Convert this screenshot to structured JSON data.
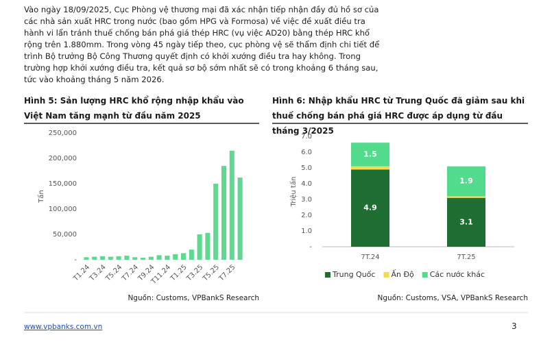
{
  "paragraph": {
    "lines": [
      "Vào ngày 18/09/2025, Cục Phòng vệ thương mại đã xác nhận tiếp nhận đầy đủ hồ sơ của",
      "các nhà sản xuất HRC trong nước (bao gồm HPG và Formosa) về việc đề xuất điều tra",
      "hành vi lẩn tránh thuế chống bán phá giá thép HRC (vụ việc AD20) bằng thép HRC khổ",
      "rộng trên 1.880mm. Trong vòng 45 ngày tiếp theo, cục phòng vệ sẽ thẩm định chi tiết để",
      "trình Bộ trưởng Bộ Công Thương quyết định có khởi xướng điều tra hay không. Trong",
      "trường hợp khởi xướng điều tra, kết quả sơ bộ sớm nhất sẽ có trong khoảng 6 tháng sau,",
      "tức vào khoảng tháng 5 năm 2026."
    ]
  },
  "chart_data": [
    {
      "type": "bar",
      "title": "Hình 5: Sản lượng HRC khổ rộng nhập khẩu vào Việt Nam tăng mạnh từ đầu năm 2025",
      "y_label": "Tấn",
      "source": "Nguồn: Customs, VPBankS Research",
      "categories": [
        "T1.24",
        null,
        "T3.24",
        null,
        "T5.24",
        null,
        "T7.24",
        null,
        "T9.24",
        null,
        "T11.24",
        null,
        "T1.25",
        null,
        "T3.25",
        null,
        "T5.25",
        null,
        "T7.25",
        null
      ],
      "values": [
        5000,
        6000,
        7000,
        6000,
        7000,
        8000,
        5000,
        4000,
        6000,
        9000,
        8000,
        11000,
        13000,
        20000,
        50000,
        53000,
        150000,
        185000,
        215000,
        162000
      ],
      "color": "#5ed98f",
      "ylim": [
        0,
        250000
      ],
      "yticks": [
        {
          "value": 0,
          "label": "-"
        },
        {
          "value": 50000,
          "label": "50,000"
        },
        {
          "value": 100000,
          "label": "100,000"
        },
        {
          "value": 150000,
          "label": "150,000"
        },
        {
          "value": 200000,
          "label": "200,000"
        },
        {
          "value": 250000,
          "label": "250,000"
        }
      ]
    },
    {
      "type": "stacked_bar",
      "title": "Hình 6: Nhập khẩu HRC từ Trung Quốc đã giảm sau khi thuế chống bán phá giá HRC được áp dụng từ đầu tháng 3/2025",
      "y_label": "Triệu tấn",
      "source": "Nguồn: Customs, VSA, VPBankS Research",
      "categories": [
        "7T.24",
        "7T.25"
      ],
      "series": [
        {
          "name": "Trung Quốc",
          "color": "#1f6e31",
          "values": [
            4.9,
            3.1
          ],
          "data_labels": true
        },
        {
          "name": "Ấn Độ",
          "color": "#f2dc4e",
          "values": [
            0.2,
            0.1
          ],
          "data_labels": false
        },
        {
          "name": "Các nước khác",
          "color": "#52da8d",
          "values": [
            1.5,
            1.9
          ],
          "data_labels": true
        }
      ],
      "ylim": [
        0,
        7
      ],
      "yticks": [
        {
          "value": 0,
          "label": "-"
        },
        {
          "value": 1,
          "label": "1.0"
        },
        {
          "value": 2,
          "label": "2.0"
        },
        {
          "value": 3,
          "label": "3.0"
        },
        {
          "value": 4,
          "label": "4.0"
        },
        {
          "value": 5,
          "label": "5.0"
        },
        {
          "value": 6,
          "label": "6.0"
        },
        {
          "value": 7,
          "label": "7.0"
        }
      ],
      "legend": "bottom"
    }
  ],
  "footer": {
    "url": "www.vpbanks.com.vn",
    "page": "3"
  }
}
